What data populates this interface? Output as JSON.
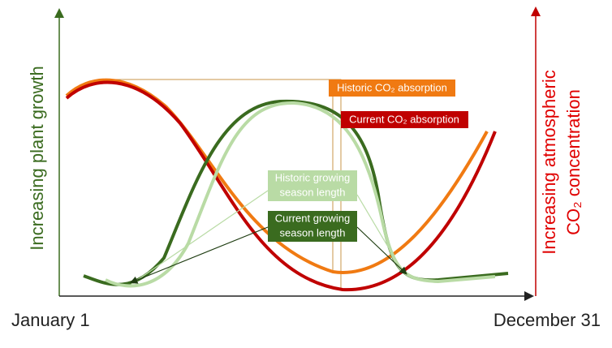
{
  "axes": {
    "left_label": "Increasing plant growth",
    "right_label_line1": "Increasing atmospheric",
    "right_label_line2": "CO₂ concentration",
    "start_label": "January 1",
    "end_label": "December 31"
  },
  "labels": {
    "historic_co2": "Historic CO₂ absorption",
    "current_co2": "Current CO₂ absorption",
    "historic_season_line1": "Historic growing",
    "historic_season_line2": "season length",
    "current_season_line1": "Current growing",
    "current_season_line2": "season length"
  }
}
